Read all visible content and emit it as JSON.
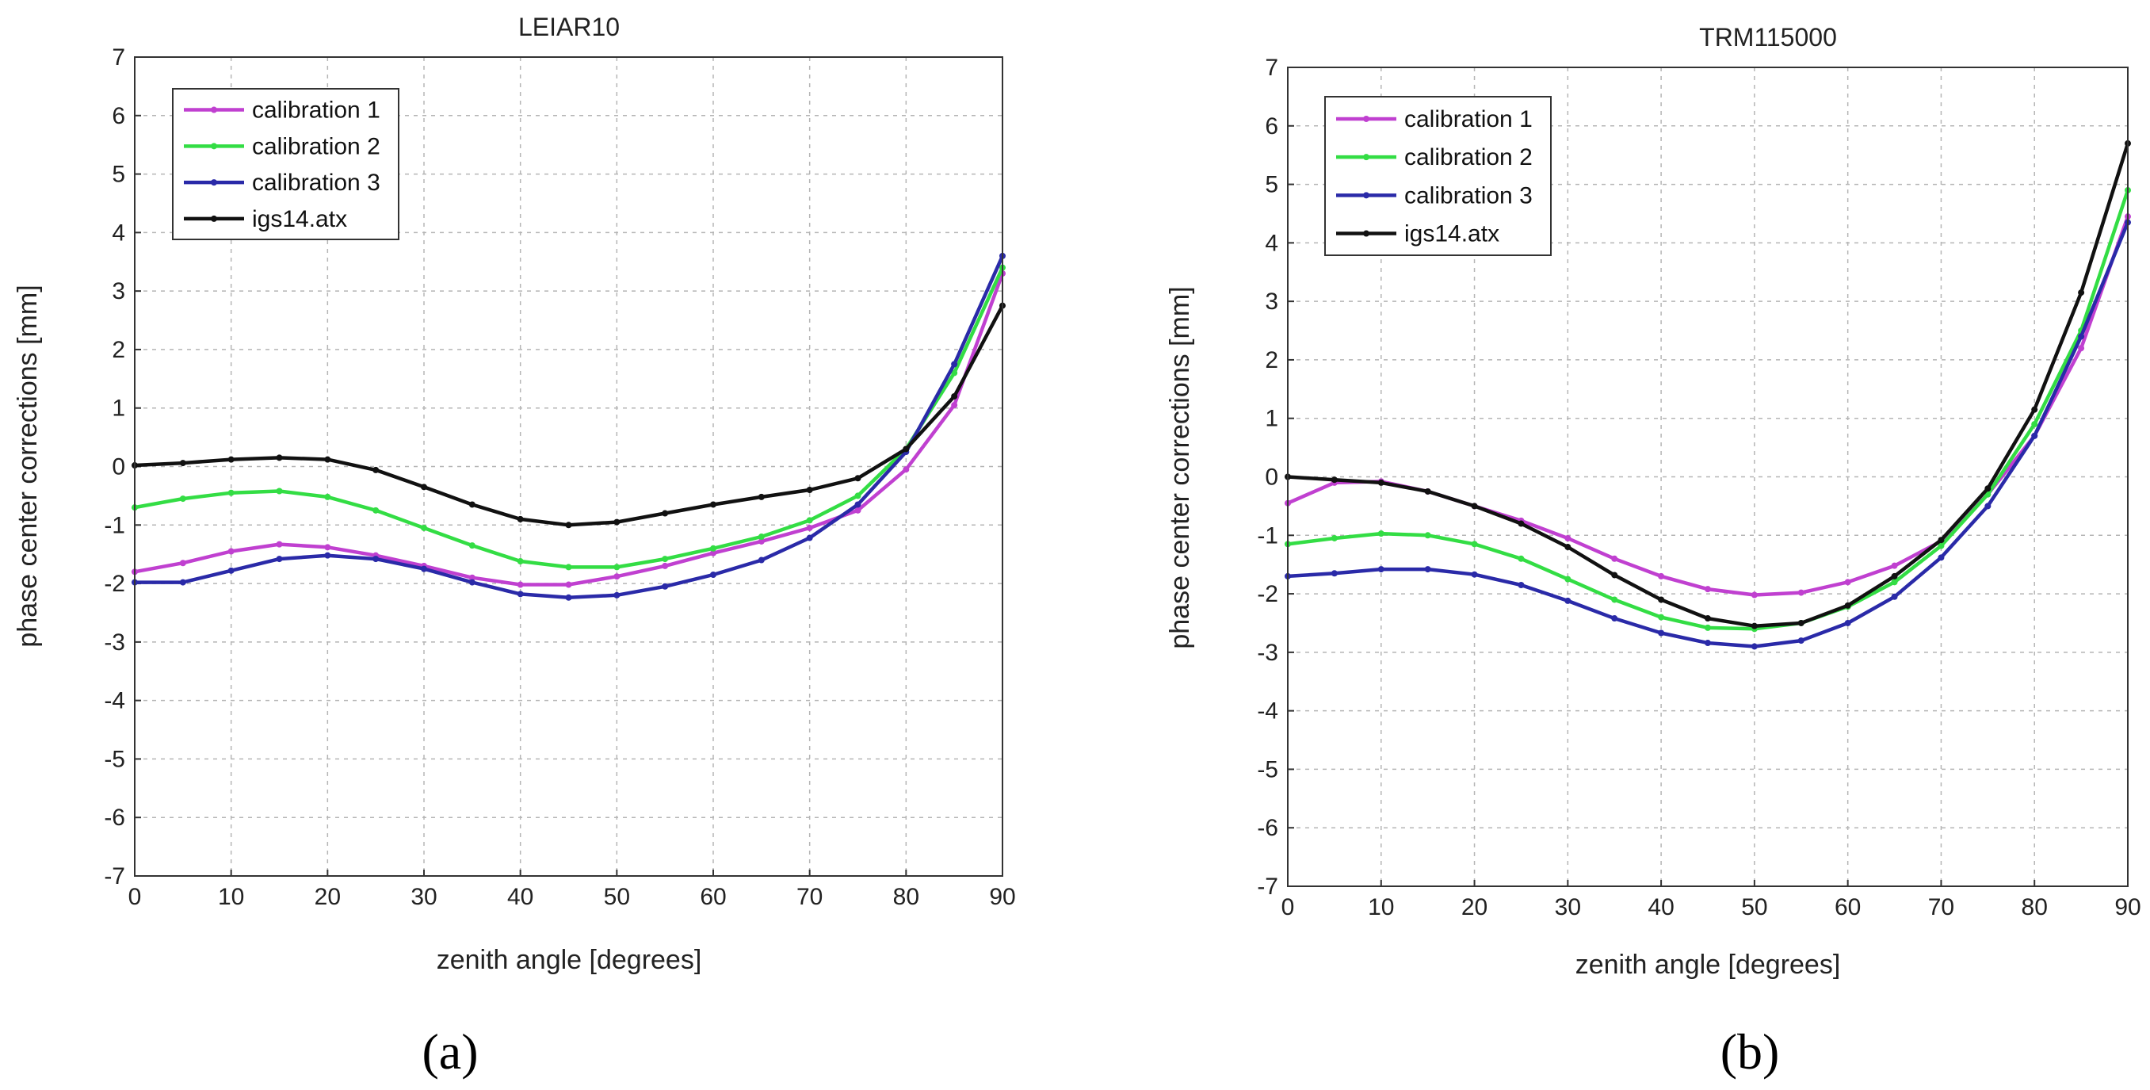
{
  "chart_data": [
    {
      "type": "line",
      "panel_label": "(a)",
      "title": "LEIAR10",
      "xlabel": "zenith angle [degrees]",
      "ylabel": "phase center corrections [mm]",
      "xlim": [
        0,
        90
      ],
      "ylim": [
        -7,
        7
      ],
      "xticks": [
        0,
        10,
        20,
        30,
        40,
        50,
        60,
        70,
        80,
        90
      ],
      "yticks": [
        -7,
        -6,
        -5,
        -4,
        -3,
        -2,
        -1,
        0,
        1,
        2,
        3,
        4,
        5,
        6,
        7
      ],
      "grid": true,
      "legend": "top-left",
      "x": [
        0,
        5,
        10,
        15,
        20,
        25,
        30,
        35,
        40,
        45,
        50,
        55,
        60,
        65,
        70,
        75,
        80,
        85,
        90
      ],
      "series": [
        {
          "name": "calibration 1",
          "color": "#c040d0",
          "values": [
            -1.8,
            -1.65,
            -1.45,
            -1.33,
            -1.38,
            -1.52,
            -1.7,
            -1.9,
            -2.02,
            -2.02,
            -1.88,
            -1.7,
            -1.48,
            -1.28,
            -1.05,
            -0.75,
            -0.05,
            1.05,
            3.3
          ]
        },
        {
          "name": "calibration 2",
          "color": "#33dd44",
          "values": [
            -0.7,
            -0.55,
            -0.45,
            -0.42,
            -0.52,
            -0.75,
            -1.05,
            -1.35,
            -1.62,
            -1.72,
            -1.72,
            -1.58,
            -1.4,
            -1.2,
            -0.92,
            -0.5,
            0.3,
            1.6,
            3.4
          ]
        },
        {
          "name": "calibration 3",
          "color": "#2a2aa8",
          "values": [
            -1.98,
            -1.98,
            -1.78,
            -1.58,
            -1.52,
            -1.58,
            -1.75,
            -1.98,
            -2.18,
            -2.24,
            -2.2,
            -2.05,
            -1.85,
            -1.6,
            -1.22,
            -0.65,
            0.25,
            1.75,
            3.6
          ]
        },
        {
          "name": "igs14.atx",
          "color": "#111111",
          "values": [
            0.02,
            0.06,
            0.12,
            0.15,
            0.12,
            -0.06,
            -0.35,
            -0.65,
            -0.9,
            -1.0,
            -0.95,
            -0.8,
            -0.65,
            -0.52,
            -0.4,
            -0.2,
            0.3,
            1.2,
            2.75
          ]
        }
      ]
    },
    {
      "type": "line",
      "panel_label": "(b)",
      "title": "TRM115000",
      "xlabel": "zenith angle [degrees]",
      "ylabel": "phase center corrections [mm]",
      "xlim": [
        0,
        90
      ],
      "ylim": [
        -7,
        7
      ],
      "xticks": [
        0,
        10,
        20,
        30,
        40,
        50,
        60,
        70,
        80,
        90
      ],
      "yticks": [
        -7,
        -6,
        -5,
        -4,
        -3,
        -2,
        -1,
        0,
        1,
        2,
        3,
        4,
        5,
        6,
        7
      ],
      "grid": true,
      "legend": "top-left",
      "x": [
        0,
        5,
        10,
        15,
        20,
        25,
        30,
        35,
        40,
        45,
        50,
        55,
        60,
        65,
        70,
        75,
        80,
        85,
        90
      ],
      "series": [
        {
          "name": "calibration 1",
          "color": "#c040d0",
          "values": [
            -0.45,
            -0.1,
            -0.08,
            -0.25,
            -0.5,
            -0.75,
            -1.05,
            -1.4,
            -1.7,
            -1.92,
            -2.02,
            -1.98,
            -1.8,
            -1.52,
            -1.1,
            -0.3,
            0.7,
            2.2,
            4.45
          ]
        },
        {
          "name": "calibration 2",
          "color": "#33dd44",
          "values": [
            -1.15,
            -1.05,
            -0.97,
            -1.0,
            -1.15,
            -1.4,
            -1.75,
            -2.1,
            -2.4,
            -2.58,
            -2.6,
            -2.5,
            -2.22,
            -1.8,
            -1.18,
            -0.3,
            0.9,
            2.5,
            4.9
          ]
        },
        {
          "name": "calibration 3",
          "color": "#2a2aa8",
          "values": [
            -1.7,
            -1.65,
            -1.58,
            -1.58,
            -1.67,
            -1.85,
            -2.12,
            -2.42,
            -2.67,
            -2.84,
            -2.9,
            -2.8,
            -2.5,
            -2.05,
            -1.38,
            -0.5,
            0.7,
            2.4,
            4.35
          ]
        },
        {
          "name": "igs14.atx",
          "color": "#111111",
          "values": [
            0.0,
            -0.05,
            -0.1,
            -0.25,
            -0.5,
            -0.8,
            -1.2,
            -1.68,
            -2.1,
            -2.42,
            -2.55,
            -2.5,
            -2.2,
            -1.7,
            -1.08,
            -0.2,
            1.15,
            3.15,
            5.7
          ]
        }
      ]
    }
  ]
}
